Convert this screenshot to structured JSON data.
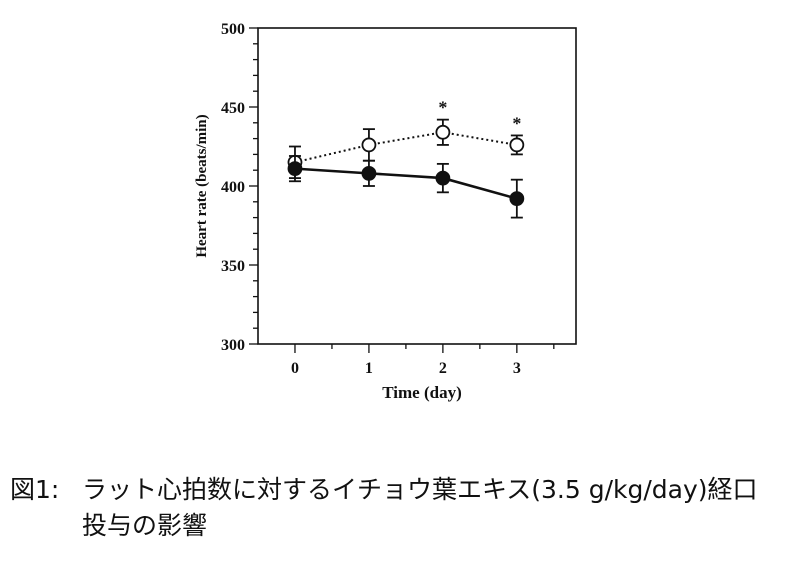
{
  "chart_data": {
    "type": "line",
    "title": "",
    "xlabel": "Time (day)",
    "ylabel": "Heart rate (beats/min)",
    "x": [
      0,
      1,
      2,
      3
    ],
    "x_ticks": [
      "0",
      "1",
      "2",
      "3"
    ],
    "xlim": [
      -0.5,
      3.8
    ],
    "ylim": [
      300,
      500
    ],
    "y_ticks": [
      "300",
      "350",
      "400",
      "450",
      "500"
    ],
    "grid": false,
    "legend": "none",
    "series": [
      {
        "marker": "open-circle",
        "line": "dotted",
        "values": [
          415,
          426,
          434,
          426
        ],
        "errors": [
          10,
          10,
          8,
          6
        ],
        "significance": [
          "",
          "",
          "*",
          "*"
        ]
      },
      {
        "marker": "filled-circle",
        "line": "solid",
        "values": [
          411,
          408,
          405,
          392
        ],
        "errors": [
          8,
          8,
          9,
          12
        ],
        "significance": [
          "",
          "",
          "",
          ""
        ]
      }
    ]
  },
  "caption": {
    "number": "図1:",
    "line1": "ラット心拍数に対するイチョウ葉エキス(3.5 g/kg/day)経口",
    "line2": "投与の影響"
  }
}
